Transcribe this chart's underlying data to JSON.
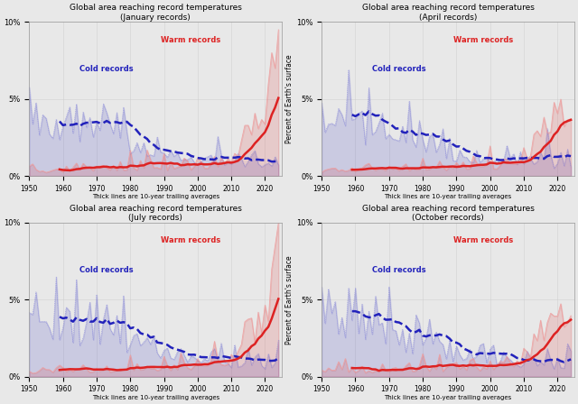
{
  "months": [
    "January",
    "April",
    "July",
    "October"
  ],
  "month_keys": [
    "jan",
    "apr",
    "jul",
    "oct"
  ],
  "year_start": 1950,
  "year_end": 2024,
  "ylim": [
    0,
    0.1
  ],
  "yticks": [
    0,
    0.05,
    0.1
  ],
  "ytick_labels": [
    "0%",
    "5%",
    "10%"
  ],
  "xlabel": "Thick lines are 10-year trailing averages",
  "ylabel": "Percent of Earth's surface",
  "title_line1": "Global area reaching record temperatures",
  "warm_label": "Warm records",
  "cold_label": "Cold records",
  "warm_color": "#dd2222",
  "warm_thin_color": "#f0a0a0",
  "cold_color": "#2222bb",
  "cold_thin_color": "#8888dd",
  "fill_alpha": 0.15,
  "background_color": "#e8e8e8",
  "figure_background": "#e8e8e8",
  "grid_color": "#cccccc",
  "month_labels": [
    "(January records)",
    "(April records)",
    "(July records)",
    "(October records)"
  ]
}
